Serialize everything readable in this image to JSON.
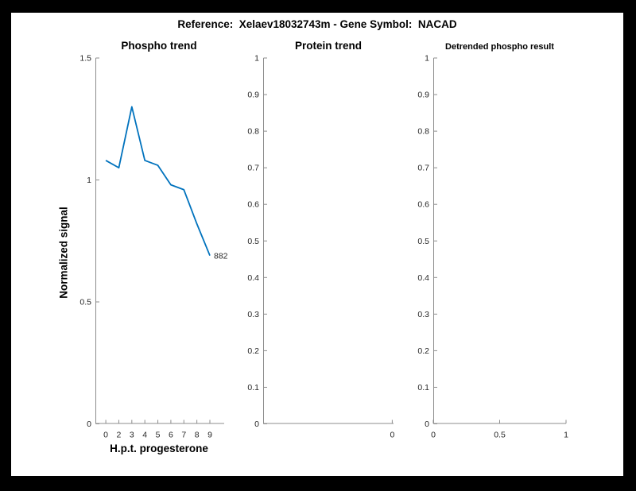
{
  "window": {
    "background": "#000000",
    "figure_background": "#ffffff"
  },
  "title": "Reference:  Xelaev18032743m - Gene Symbol:  NACAD",
  "colors": {
    "line": "#0072BD",
    "axis": "#8c8c8c",
    "tick_text": "#262626",
    "title_text": "#000000"
  },
  "chart_data": [
    {
      "type": "line",
      "title": "Phospho trend",
      "xlabel": "H.p.t. progesterone",
      "ylabel": "Normalized signal",
      "x": [
        1,
        2,
        3,
        4,
        5,
        6,
        7,
        8,
        9
      ],
      "values": [
        1.08,
        1.05,
        1.3,
        1.08,
        1.06,
        0.98,
        0.96,
        0.82,
        0.69
      ],
      "x_ticks": [
        1,
        2,
        3,
        4,
        5,
        6,
        7,
        8,
        9
      ],
      "x_tick_labels": [
        "0",
        "2",
        "3",
        "4",
        "5",
        "6",
        "7",
        "8",
        "9"
      ],
      "xlim": [
        0.2,
        10.1
      ],
      "ylim": [
        0,
        1.5
      ],
      "y_ticks": [
        0,
        0.5,
        1,
        1.5
      ],
      "y_tick_labels": [
        "0",
        "0.5",
        "1",
        "1.5"
      ],
      "grid": false,
      "legend": null,
      "annotation": {
        "text": "882",
        "x": 9,
        "y": 0.69
      },
      "line_color": "#0072BD"
    },
    {
      "type": "line",
      "title": "Protein trend",
      "xlabel": "",
      "ylabel": "",
      "x": [],
      "values": [],
      "x_ticks": [
        0
      ],
      "x_tick_labels": [
        "0"
      ],
      "xlim": [
        -1,
        0.01
      ],
      "ylim": [
        0,
        1
      ],
      "y_ticks": [
        0,
        0.1,
        0.2,
        0.3,
        0.4,
        0.5,
        0.6,
        0.7,
        0.8,
        0.9,
        1
      ],
      "y_tick_labels": [
        "0",
        "0.1",
        "0.2",
        "0.3",
        "0.4",
        "0.5",
        "0.6",
        "0.7",
        "0.8",
        "0.9",
        "1"
      ],
      "grid": false,
      "legend": null,
      "annotation": null,
      "line_color": "#0072BD"
    },
    {
      "type": "line",
      "title": "Detrended phospho result",
      "xlabel": "",
      "ylabel": "",
      "x": [],
      "values": [],
      "x_ticks": [
        0,
        0.5,
        1
      ],
      "x_tick_labels": [
        "0",
        "0.5",
        "1"
      ],
      "xlim": [
        0,
        1
      ],
      "ylim": [
        0,
        1
      ],
      "y_ticks": [
        0,
        0.1,
        0.2,
        0.3,
        0.4,
        0.5,
        0.6,
        0.7,
        0.8,
        0.9,
        1
      ],
      "y_tick_labels": [
        "0",
        "0.1",
        "0.2",
        "0.3",
        "0.4",
        "0.5",
        "0.6",
        "0.7",
        "0.8",
        "0.9",
        "1"
      ],
      "grid": false,
      "legend": null,
      "annotation": null,
      "line_color": "#0072BD"
    }
  ]
}
